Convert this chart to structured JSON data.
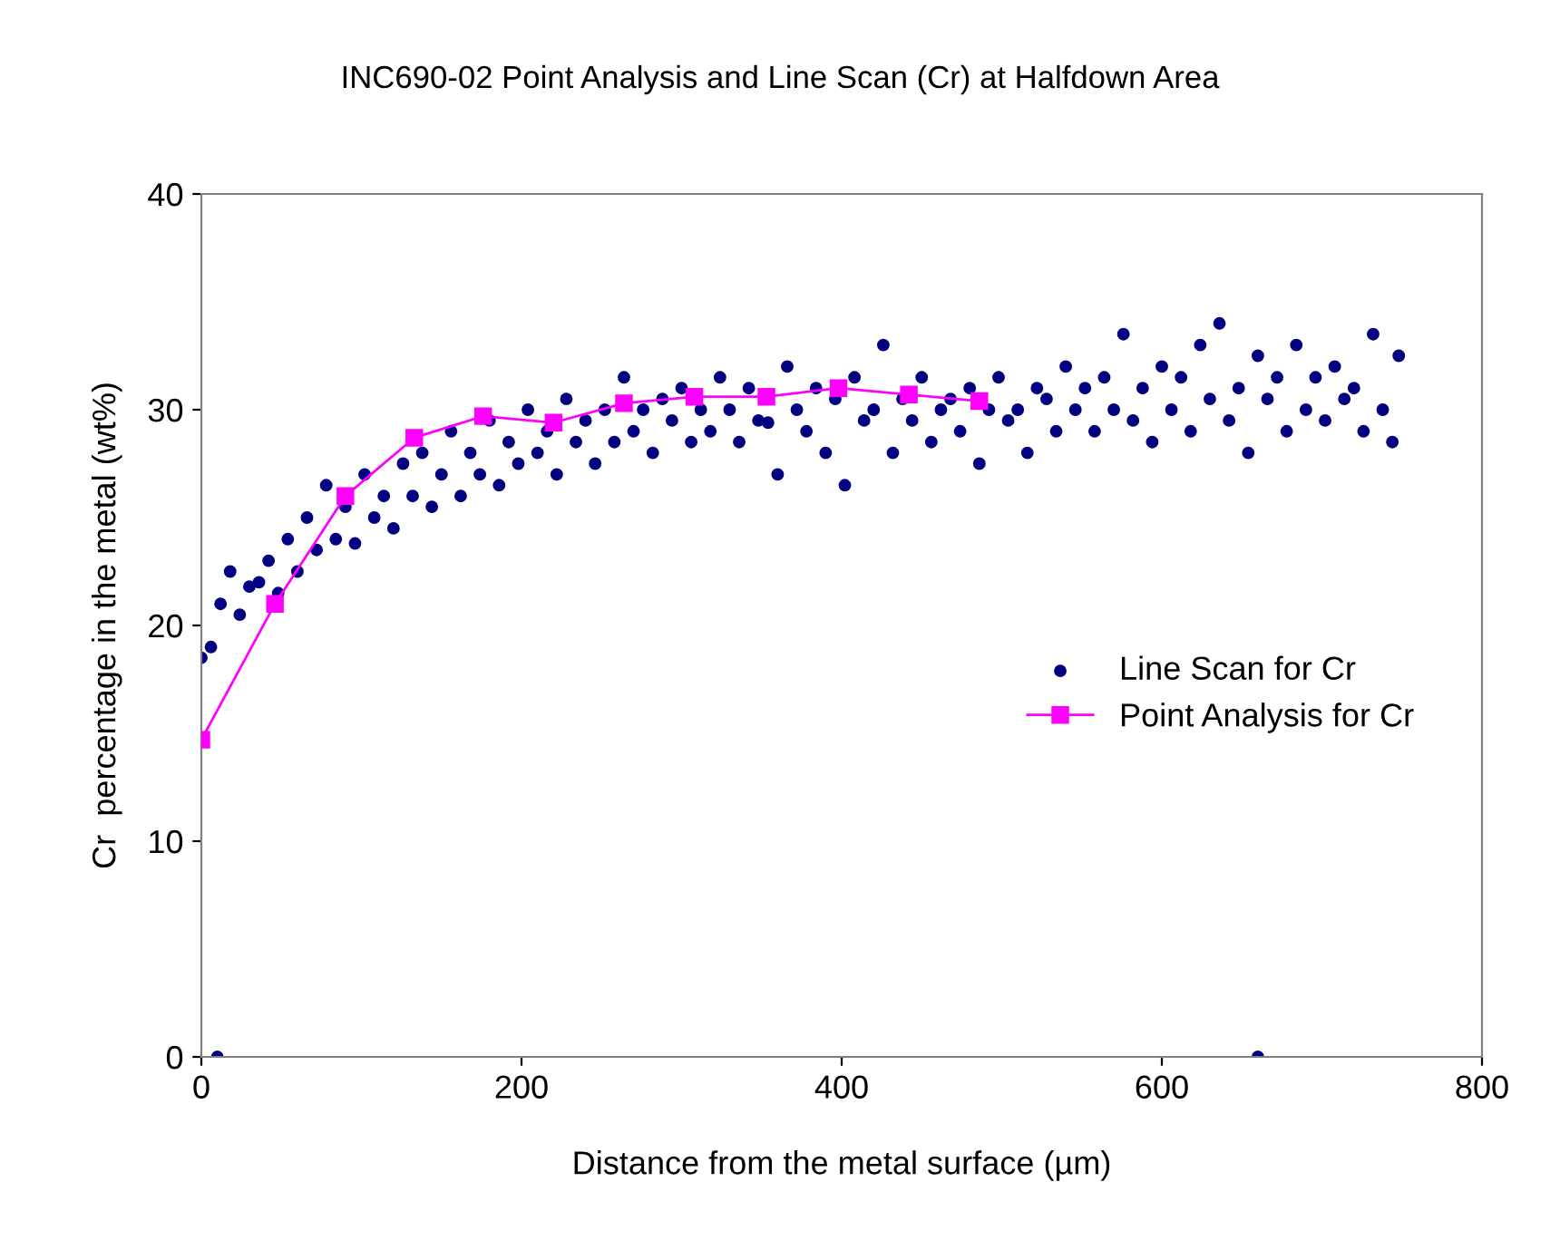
{
  "chart_data": {
    "type": "scatter",
    "title": "INC690-02 Point Analysis and Line Scan (Cr) at Halfdown Area",
    "xlabel": "Distance from the metal surface (µm)",
    "ylabel": "Cr  percentage in the metal (wt%)",
    "xlim": [
      0,
      800
    ],
    "xticks": [
      0,
      200,
      400,
      600,
      800
    ],
    "ylim": [
      0,
      40
    ],
    "yticks": [
      0,
      10,
      20,
      30,
      40
    ],
    "grid": false,
    "legend": "right",
    "series": [
      {
        "name": "Line Scan for Cr",
        "marker": "circle",
        "color": "#000080",
        "x": [
          0,
          6,
          12,
          18,
          24,
          30,
          36,
          42,
          48,
          54,
          60,
          66,
          72,
          78,
          84,
          90,
          96,
          102,
          108,
          114,
          120,
          126,
          132,
          138,
          144,
          150,
          156,
          162,
          168,
          174,
          180,
          186,
          192,
          198,
          204,
          210,
          216,
          222,
          228,
          234,
          240,
          246,
          252,
          258,
          264,
          270,
          276,
          282,
          288,
          294,
          300,
          306,
          312,
          318,
          324,
          330,
          336,
          342,
          348,
          354,
          360,
          366,
          372,
          378,
          384,
          390,
          396,
          402,
          408,
          414,
          420,
          426,
          432,
          438,
          444,
          450,
          456,
          462,
          468,
          474,
          480,
          486,
          492,
          498,
          504,
          510,
          516,
          522,
          528,
          534,
          540,
          546,
          552,
          558,
          564,
          570,
          576,
          582,
          588,
          594,
          600,
          606,
          612,
          618,
          624,
          630,
          636,
          642,
          648,
          654,
          660,
          666,
          672,
          678,
          684,
          690,
          696,
          702,
          708,
          714,
          720,
          726,
          732,
          738,
          744,
          748,
          10,
          660
        ],
        "values": [
          18.5,
          19,
          21,
          22.5,
          20.5,
          21.8,
          22,
          23,
          21.5,
          24,
          22.5,
          25,
          23.5,
          26.5,
          24,
          25.5,
          23.8,
          27,
          25,
          26,
          24.5,
          27.5,
          26,
          28,
          25.5,
          27,
          29,
          26,
          28,
          27,
          29.5,
          26.5,
          28.5,
          27.5,
          30,
          28,
          29,
          27,
          30.5,
          28.5,
          29.5,
          27.5,
          30,
          28.5,
          31.5,
          29,
          30,
          28,
          30.5,
          29.5,
          31,
          28.5,
          30,
          29,
          31.5,
          30,
          28.5,
          31,
          29.5,
          29.4,
          27,
          32,
          30,
          29,
          31,
          28,
          30.5,
          26.5,
          31.5,
          29.5,
          30,
          33,
          28,
          30.5,
          29.5,
          31.5,
          28.5,
          30,
          30.5,
          29,
          31,
          27.5,
          30,
          31.5,
          29.5,
          30,
          28,
          31,
          30.5,
          29,
          32,
          30,
          31,
          29,
          31.5,
          30,
          33.5,
          29.5,
          31,
          28.5,
          32,
          30,
          31.5,
          29,
          33,
          30.5,
          34,
          29.5,
          31,
          28,
          32.5,
          30.5,
          31.5,
          29,
          33,
          30,
          31.5,
          29.5,
          32,
          30.5,
          31,
          29,
          33.5,
          30,
          28.5,
          32.5,
          0,
          0
        ]
      },
      {
        "name": "Point Analysis for Cr",
        "type": "line",
        "marker": "square",
        "line_style": "solid",
        "color": "#ff00ff",
        "x": [
          0,
          46,
          90,
          133,
          176,
          220,
          264,
          308,
          353,
          398,
          442,
          486
        ],
        "values": [
          14.7,
          21,
          26,
          28.7,
          29.7,
          29.4,
          30.3,
          30.6,
          30.6,
          31,
          30.7,
          30.4
        ]
      }
    ]
  }
}
